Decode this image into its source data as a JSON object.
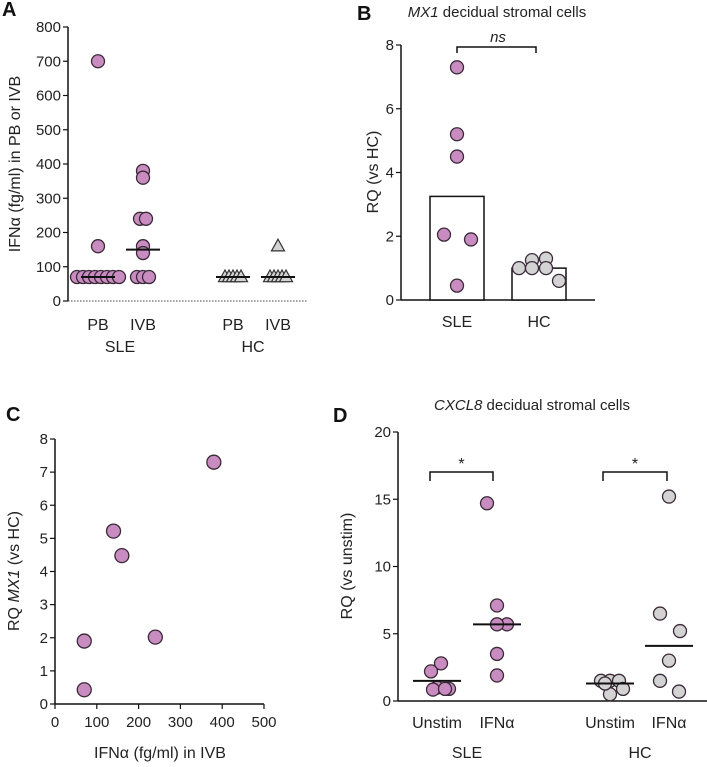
{
  "colors": {
    "sle": "#c88cc0",
    "hc": "#d3d3d3",
    "stroke": "#3a2a38",
    "axis": "#111111"
  },
  "chart_data": [
    {
      "panel": "A",
      "type": "scatter",
      "title": "",
      "ylabel": "IFNα (fg/ml) in PB or IVB",
      "ylim": [
        0,
        800
      ],
      "yticks": [
        0,
        100,
        200,
        300,
        400,
        500,
        600,
        700,
        800
      ],
      "groups": [
        "SLE",
        "HC"
      ],
      "categories": [
        "PB",
        "IVB",
        "PB",
        "IVB"
      ],
      "series": [
        {
          "name": "SLE PB",
          "group": "SLE",
          "marker": "circle",
          "values": [
            700,
            160,
            70,
            70,
            70,
            70,
            70,
            70,
            70,
            70
          ],
          "median": 70
        },
        {
          "name": "SLE IVB",
          "group": "SLE",
          "marker": "circle",
          "values": [
            380,
            360,
            240,
            240,
            160,
            140,
            70,
            70,
            70
          ],
          "median": 150
        },
        {
          "name": "HC PB",
          "group": "HC",
          "marker": "triangle",
          "values": [
            70,
            70,
            70,
            70,
            70
          ],
          "median": 70
        },
        {
          "name": "HC IVB",
          "group": "HC",
          "marker": "triangle",
          "values": [
            160,
            70,
            70,
            70,
            70,
            70
          ],
          "median": 70
        }
      ],
      "dotted_baseline": 0
    },
    {
      "panel": "B",
      "type": "bar",
      "title_italic": "MX1",
      "title_rest": " decidual stromal cells",
      "ylabel": "RQ (vs HC)",
      "ylim": [
        0,
        8
      ],
      "yticks": [
        0,
        2,
        4,
        6,
        8
      ],
      "categories": [
        "SLE",
        "HC"
      ],
      "values": [
        3.25,
        1.0
      ],
      "points": [
        [
          7.3,
          5.2,
          4.5,
          2.05,
          1.9,
          0.45
        ],
        [
          1.0,
          1.25,
          1.3,
          1.0,
          1.0,
          0.6
        ]
      ],
      "significance": "ns"
    },
    {
      "panel": "C",
      "type": "scatter",
      "ylabel_prefix": "RQ ",
      "ylabel_italic": "MX1",
      "ylabel_suffix": " (vs HC)",
      "xlabel": "IFNα (fg/ml) in IVB",
      "xlim": [
        0,
        500
      ],
      "ylim": [
        0,
        8
      ],
      "xticks": [
        0,
        100,
        200,
        300,
        400,
        500
      ],
      "yticks": [
        0,
        1,
        2,
        3,
        4,
        5,
        6,
        7,
        8
      ],
      "x": [
        380,
        140,
        160,
        70,
        240,
        70
      ],
      "y": [
        7.3,
        5.22,
        4.48,
        1.9,
        2.02,
        0.43
      ]
    },
    {
      "panel": "D",
      "type": "scatter",
      "title_italic": "CXCL8",
      "title_rest": " decidual stromal cells",
      "ylabel": "RQ (vs unstim)",
      "ylim": [
        0,
        20
      ],
      "yticks": [
        0,
        5,
        10,
        15,
        20
      ],
      "groups": [
        "SLE",
        "HC"
      ],
      "categories": [
        "Unstim",
        "IFNα",
        "Unstim",
        "IFNα"
      ],
      "series": [
        {
          "name": "SLE Unstim",
          "group": "SLE",
          "values": [
            2.8,
            2.2,
            1.0,
            0.9,
            0.85,
            0.9
          ],
          "median": 1.5
        },
        {
          "name": "SLE IFNα",
          "group": "SLE",
          "values": [
            14.7,
            7.1,
            5.7,
            5.7,
            3.5,
            1.9
          ],
          "median": 5.7
        },
        {
          "name": "HC Unstim",
          "group": "HC",
          "values": [
            1.5,
            1.5,
            1.5,
            0.9,
            0.5,
            1.3
          ],
          "median": 1.3
        },
        {
          "name": "HC IFNα",
          "group": "HC",
          "values": [
            15.2,
            6.5,
            5.2,
            3.0,
            1.5,
            0.7
          ],
          "median": 4.1
        }
      ],
      "significance": [
        "*",
        "*"
      ]
    }
  ],
  "labels": {
    "panelA": "A",
    "panelB": "B",
    "panelC": "C",
    "panelD": "D"
  }
}
